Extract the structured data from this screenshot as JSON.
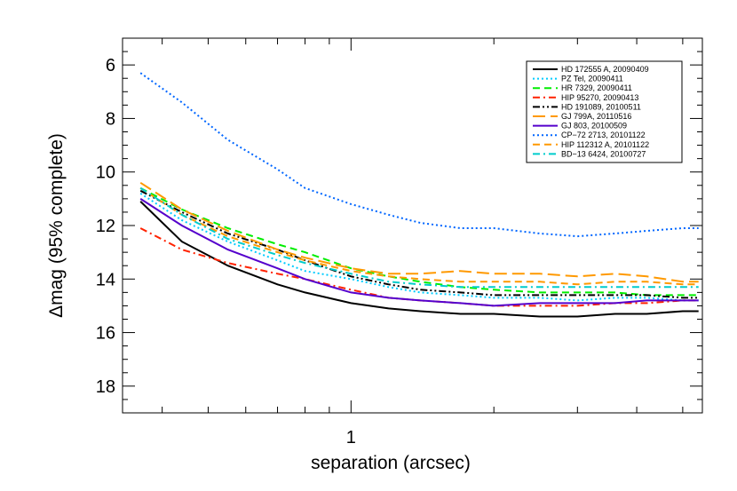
{
  "chart_data": {
    "type": "line",
    "xlabel": "separation (arcsec)",
    "ylabel": "Δmag (95% complete)",
    "x_scale": "log",
    "xlim": [
      0.33,
      5.5
    ],
    "ylim": [
      19,
      5
    ],
    "y_inverted": true,
    "x_ticks": [
      {
        "value": 1,
        "label": "1"
      }
    ],
    "y_ticks": [
      {
        "value": 6,
        "label": "6"
      },
      {
        "value": 8,
        "label": "8"
      },
      {
        "value": 10,
        "label": "10"
      },
      {
        "value": 12,
        "label": "12"
      },
      {
        "value": 14,
        "label": "14"
      },
      {
        "value": 16,
        "label": "16"
      },
      {
        "value": 18,
        "label": "18"
      }
    ],
    "grid": false,
    "legend_position": "top-right",
    "series": [
      {
        "name": "HD 172555 A, 20090409",
        "color": "#000000",
        "dash": "solid",
        "x": [
          0.36,
          0.44,
          0.55,
          0.7,
          0.8,
          1.0,
          1.2,
          1.4,
          1.7,
          2.0,
          2.5,
          3.0,
          3.6,
          4.2,
          5.0,
          5.4
        ],
        "y": [
          11.1,
          12.6,
          13.5,
          14.2,
          14.5,
          14.9,
          15.1,
          15.2,
          15.3,
          15.3,
          15.4,
          15.4,
          15.3,
          15.3,
          15.2,
          15.2
        ]
      },
      {
        "name": "PZ Tel, 20090411",
        "color": "#00ccff",
        "dash": "dot",
        "x": [
          0.36,
          0.44,
          0.55,
          0.7,
          0.8,
          1.0,
          1.2,
          1.4,
          1.7,
          2.0,
          2.5,
          3.0,
          3.6,
          4.2,
          5.0,
          5.4
        ],
        "y": [
          10.8,
          11.8,
          12.6,
          13.3,
          13.7,
          14.0,
          14.3,
          14.5,
          14.6,
          14.7,
          14.7,
          14.8,
          14.7,
          14.7,
          14.8,
          14.8
        ]
      },
      {
        "name": "HR 7329, 20090411",
        "color": "#00ee00",
        "dash": "dash",
        "x": [
          0.36,
          0.44,
          0.55,
          0.7,
          0.8,
          1.0,
          1.2,
          1.4,
          1.7,
          2.0,
          2.5,
          3.0,
          3.6,
          4.2,
          5.0,
          5.4
        ],
        "y": [
          10.6,
          11.4,
          12.1,
          12.7,
          13.0,
          13.6,
          13.9,
          14.1,
          14.3,
          14.4,
          14.5,
          14.5,
          14.5,
          14.6,
          14.6,
          14.6
        ]
      },
      {
        "name": "HIP 95270, 20090413",
        "color": "#ff2200",
        "dash": "dashdot",
        "x": [
          0.36,
          0.44,
          0.55,
          0.7,
          0.8,
          1.0,
          1.2,
          1.4,
          1.7,
          2.0,
          2.5,
          3.0,
          3.6,
          4.2,
          5.0,
          5.4
        ],
        "y": [
          12.1,
          12.9,
          13.4,
          13.8,
          14.0,
          14.4,
          14.7,
          14.8,
          14.9,
          15.0,
          15.0,
          15.0,
          14.9,
          14.9,
          14.8,
          14.8
        ]
      },
      {
        "name": "HD 191089, 20100511",
        "color": "#000000",
        "dash": "dashdotdot",
        "x": [
          0.36,
          0.44,
          0.55,
          0.7,
          0.8,
          1.0,
          1.2,
          1.4,
          1.7,
          2.0,
          2.5,
          3.0,
          3.6,
          4.2,
          5.0,
          5.4
        ],
        "y": [
          10.7,
          11.5,
          12.3,
          12.9,
          13.3,
          13.9,
          14.2,
          14.4,
          14.5,
          14.6,
          14.6,
          14.6,
          14.6,
          14.6,
          14.7,
          14.7
        ]
      },
      {
        "name": "GJ 799A, 20110516",
        "color": "#ff9900",
        "dash": "longdash",
        "x": [
          0.36,
          0.44,
          0.55,
          0.7,
          0.8,
          1.0,
          1.2,
          1.4,
          1.7,
          2.0,
          2.5,
          3.0,
          3.6,
          4.2,
          5.0,
          5.4
        ],
        "y": [
          10.4,
          11.4,
          12.2,
          12.9,
          13.2,
          13.6,
          13.8,
          13.8,
          13.7,
          13.8,
          13.8,
          13.9,
          13.8,
          13.9,
          14.1,
          14.1
        ]
      },
      {
        "name": "GJ 803, 20100509",
        "color": "#5500cc",
        "dash": "solid",
        "x": [
          0.36,
          0.44,
          0.55,
          0.7,
          0.8,
          1.0,
          1.2,
          1.4,
          1.7,
          2.0,
          2.5,
          3.0,
          3.6,
          4.2,
          5.0,
          5.4
        ],
        "y": [
          11.0,
          12.0,
          12.9,
          13.6,
          14.0,
          14.5,
          14.7,
          14.8,
          14.9,
          15.0,
          14.9,
          14.9,
          14.9,
          14.8,
          14.8,
          14.8
        ]
      },
      {
        "name": "CP−72 2713, 20101122",
        "color": "#0066ff",
        "dash": "dot",
        "x": [
          0.36,
          0.44,
          0.55,
          0.7,
          0.8,
          1.0,
          1.2,
          1.4,
          1.7,
          2.0,
          2.5,
          3.0,
          3.6,
          4.2,
          5.0,
          5.4
        ],
        "y": [
          6.3,
          7.4,
          8.8,
          9.9,
          10.6,
          11.2,
          11.6,
          11.9,
          12.1,
          12.1,
          12.3,
          12.4,
          12.3,
          12.2,
          12.1,
          12.1
        ]
      },
      {
        "name": "HIP 112312 A, 20101122",
        "color": "#ff9900",
        "dash": "dash",
        "x": [
          0.36,
          0.44,
          0.55,
          0.7,
          0.8,
          1.0,
          1.2,
          1.4,
          1.7,
          2.0,
          2.5,
          3.0,
          3.6,
          4.2,
          5.0,
          5.4
        ],
        "y": [
          10.6,
          11.6,
          12.4,
          13.0,
          13.3,
          13.7,
          13.9,
          14.0,
          14.1,
          14.1,
          14.1,
          14.2,
          14.1,
          14.1,
          14.2,
          14.2
        ]
      },
      {
        "name": "BD−13 6424, 20100727",
        "color": "#00cccc",
        "dash": "dashdot",
        "x": [
          0.36,
          0.44,
          0.55,
          0.7,
          0.8,
          1.0,
          1.2,
          1.4,
          1.7,
          2.0,
          2.5,
          3.0,
          3.6,
          4.2,
          5.0,
          5.4
        ],
        "y": [
          10.6,
          11.6,
          12.5,
          13.1,
          13.4,
          13.8,
          14.1,
          14.2,
          14.3,
          14.3,
          14.3,
          14.3,
          14.3,
          14.3,
          14.3,
          14.3
        ]
      }
    ]
  }
}
